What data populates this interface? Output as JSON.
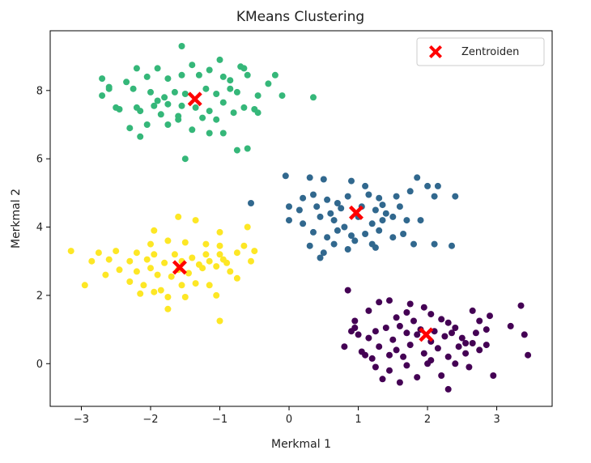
{
  "chart_data": {
    "type": "scatter",
    "title": "KMeans Clustering",
    "xlabel": "Merkmal 1",
    "ylabel": "Merkmal 2",
    "xlim": [
      -3.45,
      3.8
    ],
    "ylim": [
      -1.25,
      9.75
    ],
    "xticks": [
      -3,
      -2,
      -1,
      0,
      1,
      2,
      3
    ],
    "yticks": [
      0,
      2,
      4,
      6,
      8
    ],
    "xtick_labels": [
      "−3",
      "−2",
      "−1",
      "0",
      "1",
      "2",
      "3"
    ],
    "ytick_labels": [
      "0",
      "2",
      "4",
      "6",
      "8"
    ],
    "grid": false,
    "legend": {
      "position": "top-right",
      "entries": [
        "Zentroiden"
      ]
    },
    "series": [
      {
        "color": "#440154",
        "points": [
          [
            0.85,
            2.15
          ],
          [
            1.3,
            1.8
          ],
          [
            1.15,
            1.55
          ],
          [
            1.45,
            1.85
          ],
          [
            1.7,
            1.5
          ],
          [
            1.8,
            1.25
          ],
          [
            2.05,
            1.45
          ],
          [
            2.2,
            1.3
          ],
          [
            2.3,
            1.2
          ],
          [
            2.65,
            1.55
          ],
          [
            2.75,
            1.25
          ],
          [
            2.9,
            1.4
          ],
          [
            0.9,
            0.95
          ],
          [
            0.95,
            1.05
          ],
          [
            1.0,
            0.85
          ],
          [
            1.15,
            0.75
          ],
          [
            1.25,
            0.95
          ],
          [
            1.4,
            1.05
          ],
          [
            1.5,
            0.7
          ],
          [
            1.6,
            1.1
          ],
          [
            1.7,
            0.9
          ],
          [
            1.85,
            0.85
          ],
          [
            1.9,
            1.0
          ],
          [
            2.05,
            0.65
          ],
          [
            2.1,
            0.95
          ],
          [
            2.25,
            0.8
          ],
          [
            2.35,
            0.9
          ],
          [
            2.4,
            1.05
          ],
          [
            2.5,
            0.75
          ],
          [
            2.55,
            0.6
          ],
          [
            2.7,
            0.9
          ],
          [
            2.85,
            1.0
          ],
          [
            0.8,
            0.5
          ],
          [
            1.05,
            0.35
          ],
          [
            1.2,
            0.15
          ],
          [
            1.3,
            0.5
          ],
          [
            1.45,
            0.25
          ],
          [
            1.55,
            0.4
          ],
          [
            1.65,
            0.2
          ],
          [
            1.75,
            0.55
          ],
          [
            1.95,
            0.3
          ],
          [
            2.05,
            0.1
          ],
          [
            2.15,
            0.45
          ],
          [
            2.3,
            0.2
          ],
          [
            2.45,
            0.5
          ],
          [
            2.55,
            0.3
          ],
          [
            2.65,
            0.6
          ],
          [
            2.85,
            0.55
          ],
          [
            1.25,
            -0.1
          ],
          [
            1.45,
            -0.2
          ],
          [
            1.7,
            -0.05
          ],
          [
            1.85,
            -0.4
          ],
          [
            2.0,
            0.0
          ],
          [
            2.2,
            -0.35
          ],
          [
            2.3,
            -0.75
          ],
          [
            2.6,
            -0.1
          ],
          [
            2.95,
            -0.35
          ],
          [
            3.2,
            1.1
          ],
          [
            3.35,
            1.7
          ],
          [
            3.4,
            0.85
          ],
          [
            3.45,
            0.25
          ],
          [
            1.35,
            -0.45
          ],
          [
            1.6,
            -0.55
          ],
          [
            2.75,
            0.4
          ],
          [
            0.95,
            1.25
          ],
          [
            1.1,
            0.25
          ],
          [
            1.55,
            1.35
          ],
          [
            1.95,
            1.65
          ],
          [
            2.4,
            0.0
          ],
          [
            1.75,
            1.75
          ]
        ]
      },
      {
        "color": "#31688e",
        "points": [
          [
            -0.05,
            5.5
          ],
          [
            0.3,
            5.45
          ],
          [
            0.5,
            5.4
          ],
          [
            0.9,
            5.35
          ],
          [
            1.1,
            5.2
          ],
          [
            1.85,
            5.45
          ],
          [
            2.15,
            5.2
          ],
          [
            2.4,
            4.9
          ],
          [
            -0.55,
            4.7
          ],
          [
            0.2,
            4.85
          ],
          [
            0.35,
            4.95
          ],
          [
            0.55,
            4.8
          ],
          [
            0.7,
            4.7
          ],
          [
            0.85,
            4.9
          ],
          [
            1.15,
            4.95
          ],
          [
            1.3,
            4.85
          ],
          [
            1.55,
            4.9
          ],
          [
            1.75,
            5.05
          ],
          [
            2.0,
            5.2
          ],
          [
            0.0,
            4.6
          ],
          [
            0.15,
            4.5
          ],
          [
            0.4,
            4.6
          ],
          [
            0.6,
            4.4
          ],
          [
            0.75,
            4.55
          ],
          [
            1.05,
            4.6
          ],
          [
            1.25,
            4.5
          ],
          [
            1.4,
            4.4
          ],
          [
            1.6,
            4.6
          ],
          [
            2.1,
            4.9
          ],
          [
            0.0,
            4.2
          ],
          [
            0.2,
            4.1
          ],
          [
            0.45,
            4.3
          ],
          [
            0.65,
            4.2
          ],
          [
            0.8,
            4.0
          ],
          [
            1.0,
            4.3
          ],
          [
            1.2,
            4.1
          ],
          [
            1.35,
            4.2
          ],
          [
            1.5,
            4.3
          ],
          [
            1.7,
            4.2
          ],
          [
            1.9,
            4.2
          ],
          [
            0.35,
            3.85
          ],
          [
            0.55,
            3.7
          ],
          [
            0.7,
            3.9
          ],
          [
            0.9,
            3.75
          ],
          [
            1.1,
            3.8
          ],
          [
            1.3,
            3.9
          ],
          [
            1.5,
            3.7
          ],
          [
            1.65,
            3.8
          ],
          [
            0.3,
            3.45
          ],
          [
            0.5,
            3.25
          ],
          [
            0.65,
            3.5
          ],
          [
            0.85,
            3.35
          ],
          [
            1.2,
            3.5
          ],
          [
            1.25,
            3.4
          ],
          [
            1.8,
            3.5
          ],
          [
            2.1,
            3.5
          ],
          [
            2.35,
            3.45
          ],
          [
            0.45,
            3.1
          ],
          [
            0.95,
            3.6
          ],
          [
            1.35,
            4.65
          ]
        ]
      },
      {
        "color": "#35b779",
        "points": [
          [
            -1.55,
            9.3
          ],
          [
            -2.2,
            8.65
          ],
          [
            -1.9,
            8.65
          ],
          [
            -1.4,
            8.75
          ],
          [
            -1.0,
            8.9
          ],
          [
            -0.7,
            8.7
          ],
          [
            -0.65,
            8.65
          ],
          [
            -1.15,
            8.6
          ],
          [
            -2.7,
            8.35
          ],
          [
            -2.6,
            8.1
          ],
          [
            -2.35,
            8.25
          ],
          [
            -2.05,
            8.4
          ],
          [
            -1.75,
            8.35
          ],
          [
            -1.55,
            8.45
          ],
          [
            -1.3,
            8.45
          ],
          [
            -0.95,
            8.4
          ],
          [
            -0.85,
            8.3
          ],
          [
            -0.6,
            8.45
          ],
          [
            -0.3,
            8.2
          ],
          [
            -0.2,
            8.45
          ],
          [
            -2.7,
            7.85
          ],
          [
            -2.25,
            8.05
          ],
          [
            -2.0,
            7.95
          ],
          [
            -1.8,
            7.8
          ],
          [
            -1.65,
            7.95
          ],
          [
            -1.5,
            7.9
          ],
          [
            -1.2,
            8.05
          ],
          [
            -1.05,
            7.9
          ],
          [
            -0.75,
            7.95
          ],
          [
            -0.45,
            7.85
          ],
          [
            -0.1,
            7.85
          ],
          [
            0.35,
            7.8
          ],
          [
            -2.5,
            7.5
          ],
          [
            -2.2,
            7.5
          ],
          [
            -1.95,
            7.55
          ],
          [
            -1.75,
            7.6
          ],
          [
            -1.55,
            7.55
          ],
          [
            -1.35,
            7.5
          ],
          [
            -1.15,
            7.4
          ],
          [
            -0.95,
            7.65
          ],
          [
            -0.65,
            7.5
          ],
          [
            -0.5,
            7.45
          ],
          [
            -2.45,
            7.45
          ],
          [
            -2.15,
            7.4
          ],
          [
            -1.85,
            7.3
          ],
          [
            -1.6,
            7.25
          ],
          [
            -1.25,
            7.2
          ],
          [
            -1.05,
            7.15
          ],
          [
            -0.8,
            7.35
          ],
          [
            -0.45,
            7.35
          ],
          [
            -2.3,
            6.9
          ],
          [
            -2.05,
            7.0
          ],
          [
            -1.75,
            7.0
          ],
          [
            -1.4,
            6.85
          ],
          [
            -1.15,
            6.75
          ],
          [
            -0.95,
            6.75
          ],
          [
            -2.15,
            6.65
          ],
          [
            -0.75,
            6.25
          ],
          [
            -0.6,
            6.3
          ],
          [
            -1.5,
            6.0
          ],
          [
            -0.85,
            8.05
          ],
          [
            -2.6,
            8.05
          ],
          [
            -1.9,
            7.7
          ],
          [
            -1.6,
            7.15
          ]
        ]
      },
      {
        "color": "#fde725",
        "points": [
          [
            -1.6,
            4.3
          ],
          [
            -1.35,
            4.2
          ],
          [
            -0.6,
            4.0
          ],
          [
            -1.95,
            3.9
          ],
          [
            -1.0,
            3.85
          ],
          [
            -2.0,
            3.5
          ],
          [
            -1.75,
            3.6
          ],
          [
            -1.5,
            3.55
          ],
          [
            -1.2,
            3.5
          ],
          [
            -1.0,
            3.45
          ],
          [
            -0.65,
            3.45
          ],
          [
            -3.15,
            3.3
          ],
          [
            -2.75,
            3.25
          ],
          [
            -2.5,
            3.3
          ],
          [
            -2.2,
            3.25
          ],
          [
            -1.95,
            3.2
          ],
          [
            -1.65,
            3.2
          ],
          [
            -1.4,
            3.1
          ],
          [
            -1.2,
            3.2
          ],
          [
            -1.0,
            3.2
          ],
          [
            -0.75,
            3.25
          ],
          [
            -0.5,
            3.3
          ],
          [
            -2.85,
            3.0
          ],
          [
            -2.6,
            3.05
          ],
          [
            -2.3,
            3.0
          ],
          [
            -2.05,
            3.05
          ],
          [
            -1.8,
            2.95
          ],
          [
            -1.55,
            3.0
          ],
          [
            -1.3,
            2.9
          ],
          [
            -1.15,
            3.0
          ],
          [
            -0.9,
            2.95
          ],
          [
            -0.55,
            3.0
          ],
          [
            -2.65,
            2.6
          ],
          [
            -2.45,
            2.75
          ],
          [
            -2.2,
            2.7
          ],
          [
            -1.9,
            2.6
          ],
          [
            -1.7,
            2.55
          ],
          [
            -1.45,
            2.65
          ],
          [
            -1.25,
            2.8
          ],
          [
            -1.05,
            2.85
          ],
          [
            -0.85,
            2.7
          ],
          [
            -2.95,
            2.3
          ],
          [
            -2.3,
            2.4
          ],
          [
            -2.1,
            2.3
          ],
          [
            -1.85,
            2.15
          ],
          [
            -1.55,
            2.3
          ],
          [
            -1.35,
            2.35
          ],
          [
            -1.15,
            2.3
          ],
          [
            -0.75,
            2.5
          ],
          [
            -2.15,
            2.05
          ],
          [
            -1.95,
            2.1
          ],
          [
            -1.75,
            1.95
          ],
          [
            -1.5,
            1.95
          ],
          [
            -1.05,
            2.0
          ],
          [
            -1.75,
            1.6
          ],
          [
            -1.0,
            1.25
          ],
          [
            -2.0,
            2.8
          ],
          [
            -1.6,
            2.75
          ],
          [
            -0.95,
            3.05
          ]
        ]
      }
    ],
    "centroids": {
      "label": "Zentroiden",
      "color": "#ff0000",
      "points": [
        [
          1.98,
          0.85
        ],
        [
          0.97,
          4.42
        ],
        [
          -1.36,
          7.75
        ],
        [
          -1.58,
          2.82
        ]
      ]
    }
  }
}
